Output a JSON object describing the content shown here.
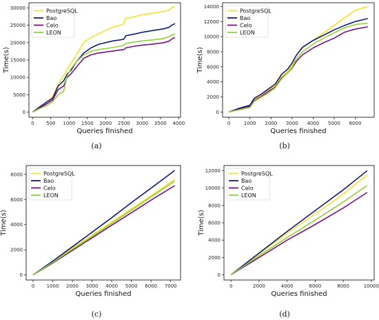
{
  "colors": {
    "PostgreSQL": "#f5e12a",
    "Bao": "#101a7a",
    "Celo": "#7a0f86",
    "LEON": "#8fd13a"
  },
  "chart_data": [
    {
      "type": "line",
      "panel_label": "(a)",
      "xlabel": "Queries finished",
      "ylabel": "Time(s)",
      "xlim": [
        -100,
        4050
      ],
      "ylim": [
        -1500,
        31500
      ],
      "xticks": [
        0,
        500,
        1000,
        1500,
        2000,
        2500,
        3000,
        3500,
        4000
      ],
      "yticks": [
        0,
        5000,
        10000,
        15000,
        20000,
        25000,
        30000
      ],
      "legend": "top-left",
      "series": [
        {
          "name": "PostgreSQL",
          "x": [
            0,
            200,
            400,
            550,
            700,
            850,
            950,
            1050,
            1200,
            1400,
            1600,
            1800,
            2000,
            2200,
            2400,
            2500,
            2550,
            2800,
            3000,
            3300,
            3600,
            3750,
            3800,
            3900
          ],
          "y": [
            0,
            1500,
            3000,
            4500,
            8000,
            10500,
            12500,
            14000,
            16500,
            20000,
            21500,
            22500,
            23500,
            24500,
            25000,
            25500,
            27000,
            27500,
            28000,
            28500,
            29000,
            29500,
            30000,
            30500
          ]
        },
        {
          "name": "Bao",
          "x": [
            0,
            200,
            400,
            550,
            700,
            850,
            950,
            1050,
            1200,
            1400,
            1600,
            1800,
            2000,
            2200,
            2400,
            2500,
            2550,
            2800,
            3000,
            3300,
            3600,
            3750,
            3800,
            3900
          ],
          "y": [
            0,
            1500,
            3000,
            4000,
            7500,
            9000,
            11000,
            12000,
            14500,
            17000,
            18500,
            19500,
            20000,
            20500,
            20800,
            21000,
            22000,
            22500,
            23000,
            23500,
            24000,
            24500,
            25000,
            25500
          ]
        },
        {
          "name": "Celo",
          "x": [
            0,
            200,
            400,
            550,
            700,
            850,
            950,
            1050,
            1200,
            1400,
            1600,
            1800,
            2000,
            2200,
            2400,
            2500,
            2550,
            2800,
            3000,
            3300,
            3600,
            3750,
            3800,
            3900
          ],
          "y": [
            0,
            1200,
            2500,
            3500,
            6500,
            7500,
            10000,
            11000,
            13000,
            15500,
            16500,
            17000,
            17300,
            17600,
            17900,
            18000,
            18500,
            19000,
            19300,
            19600,
            20000,
            20500,
            21000,
            21500
          ]
        },
        {
          "name": "LEON",
          "x": [
            0,
            200,
            400,
            550,
            700,
            850,
            950,
            1050,
            1200,
            1400,
            1600,
            1800,
            2000,
            2200,
            2400,
            2500,
            2550,
            2800,
            3000,
            3300,
            3600,
            3750,
            3800,
            3900
          ],
          "y": [
            0,
            1000,
            2000,
            3000,
            5000,
            6000,
            10500,
            12500,
            14500,
            16500,
            17500,
            18000,
            18300,
            18600,
            19000,
            19300,
            19800,
            20200,
            20500,
            20800,
            21200,
            21800,
            22200,
            22500
          ]
        }
      ]
    },
    {
      "type": "line",
      "panel_label": "(b)",
      "xlabel": "Queries finished",
      "ylabel": "Time(s)",
      "xlim": [
        -300,
        6900
      ],
      "ylim": [
        -700,
        14500
      ],
      "xticks": [
        0,
        1000,
        2000,
        3000,
        4000,
        5000,
        6000
      ],
      "yticks": [
        0,
        2000,
        4000,
        6000,
        8000,
        10000,
        12000,
        14000
      ],
      "legend": "top-left",
      "series": [
        {
          "name": "PostgreSQL",
          "x": [
            0,
            500,
            1000,
            1200,
            1500,
            1800,
            2200,
            2500,
            2800,
            3000,
            3200,
            3500,
            4000,
            4500,
            5000,
            5500,
            6000,
            6600
          ],
          "y": [
            0,
            400,
            800,
            1600,
            2200,
            2800,
            3500,
            4700,
            5400,
            6200,
            7500,
            8500,
            9500,
            10500,
            11500,
            12500,
            13500,
            14000
          ]
        },
        {
          "name": "Bao",
          "x": [
            0,
            500,
            1000,
            1200,
            1500,
            1800,
            2200,
            2500,
            2800,
            3000,
            3200,
            3500,
            4000,
            4500,
            5000,
            5500,
            6000,
            6600
          ],
          "y": [
            0,
            500,
            900,
            1800,
            2300,
            2900,
            3700,
            5000,
            5700,
            6500,
            7500,
            8600,
            9500,
            10200,
            10900,
            11500,
            12000,
            12400
          ]
        },
        {
          "name": "Celo",
          "x": [
            0,
            500,
            1000,
            1200,
            1500,
            1800,
            2200,
            2500,
            2800,
            3000,
            3200,
            3500,
            4000,
            4500,
            5000,
            5500,
            6000,
            6600
          ],
          "y": [
            0,
            350,
            750,
            1500,
            2000,
            2600,
            3300,
            4500,
            5200,
            5800,
            6700,
            7600,
            8500,
            9200,
            9800,
            10600,
            11000,
            11300
          ]
        },
        {
          "name": "LEON",
          "x": [
            0,
            500,
            1000,
            1200,
            1500,
            1800,
            2200,
            2500,
            2800,
            3000,
            3200,
            3500,
            4000,
            4500,
            5000,
            5500,
            6000,
            6600
          ],
          "y": [
            0,
            300,
            600,
            1400,
            1900,
            2400,
            3200,
            4400,
            5200,
            5900,
            7000,
            8000,
            9000,
            9800,
            10500,
            11200,
            11600,
            11800
          ]
        }
      ]
    },
    {
      "type": "line",
      "panel_label": "(c)",
      "xlabel": "Queries finished",
      "ylabel": "Time(s)",
      "xlim": [
        -350,
        7500
      ],
      "ylim": [
        -400,
        8700
      ],
      "xticks": [
        0,
        1000,
        2000,
        3000,
        4000,
        5000,
        6000,
        7000
      ],
      "yticks": [
        0,
        2000,
        4000,
        6000,
        8000
      ],
      "legend": "top-left",
      "series": [
        {
          "name": "PostgreSQL",
          "x": [
            0,
            1000,
            2000,
            3000,
            4000,
            5000,
            6000,
            7200
          ],
          "y": [
            0,
            1050,
            2150,
            3150,
            4200,
            5250,
            6300,
            7600
          ]
        },
        {
          "name": "Bao",
          "x": [
            0,
            1000,
            2000,
            3000,
            4000,
            5000,
            6000,
            7200
          ],
          "y": [
            0,
            1100,
            2250,
            3400,
            4550,
            5750,
            6900,
            8300
          ]
        },
        {
          "name": "Celo",
          "x": [
            0,
            1000,
            2000,
            3000,
            4000,
            5000,
            6000,
            7200
          ],
          "y": [
            0,
            950,
            1950,
            2950,
            3950,
            4950,
            5950,
            7100
          ]
        },
        {
          "name": "LEON",
          "x": [
            0,
            1000,
            2000,
            3000,
            4000,
            5000,
            6000,
            7200
          ],
          "y": [
            0,
            1000,
            2050,
            3050,
            4100,
            5150,
            6200,
            7450
          ]
        }
      ]
    },
    {
      "type": "line",
      "panel_label": "(d)",
      "xlabel": "Queries finished",
      "ylabel": "Time(s)",
      "xlim": [
        -500,
        10200
      ],
      "ylim": [
        -600,
        12600
      ],
      "xticks": [
        0,
        2000,
        4000,
        6000,
        8000,
        10000
      ],
      "yticks": [
        0,
        2000,
        4000,
        6000,
        8000,
        10000,
        12000
      ],
      "legend": "top-left",
      "series": [
        {
          "name": "PostgreSQL",
          "x": [
            0,
            2000,
            4000,
            6000,
            8000,
            9700
          ],
          "y": [
            0,
            2400,
            4800,
            7000,
            9300,
            11500
          ]
        },
        {
          "name": "Bao",
          "x": [
            0,
            2000,
            4000,
            6000,
            8000,
            9700
          ],
          "y": [
            0,
            2500,
            5000,
            7400,
            9800,
            12000
          ]
        },
        {
          "name": "Celo",
          "x": [
            0,
            2000,
            4000,
            6000,
            8000,
            9700
          ],
          "y": [
            0,
            2000,
            4000,
            5800,
            7700,
            9500
          ]
        },
        {
          "name": "LEON",
          "x": [
            0,
            2000,
            4000,
            6000,
            8000,
            9700
          ],
          "y": [
            0,
            2200,
            4300,
            6300,
            8400,
            10300
          ]
        }
      ]
    }
  ]
}
